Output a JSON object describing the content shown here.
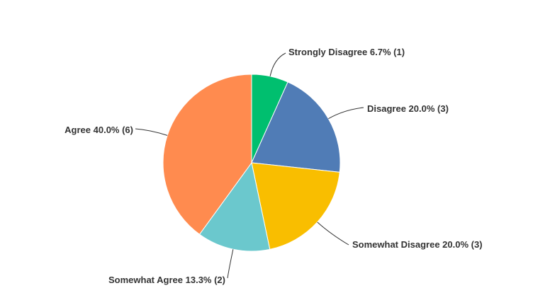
{
  "chart_data": {
    "type": "pie",
    "categories": [
      "Strongly Disagree",
      "Disagree",
      "Somewhat Disagree",
      "Somewhat Agree",
      "Agree"
    ],
    "values": [
      6.7,
      20.0,
      20.0,
      13.3,
      40.0
    ],
    "value_labels": [
      "6.7% (1)",
      "20.0% (3)",
      "20.0% (3)",
      "13.3% (2)",
      "40.0% (6)"
    ],
    "colors": [
      "#00bf6f",
      "#507cb6",
      "#f9be00",
      "#6bc8cd",
      "#ff8b4f"
    ]
  }
}
